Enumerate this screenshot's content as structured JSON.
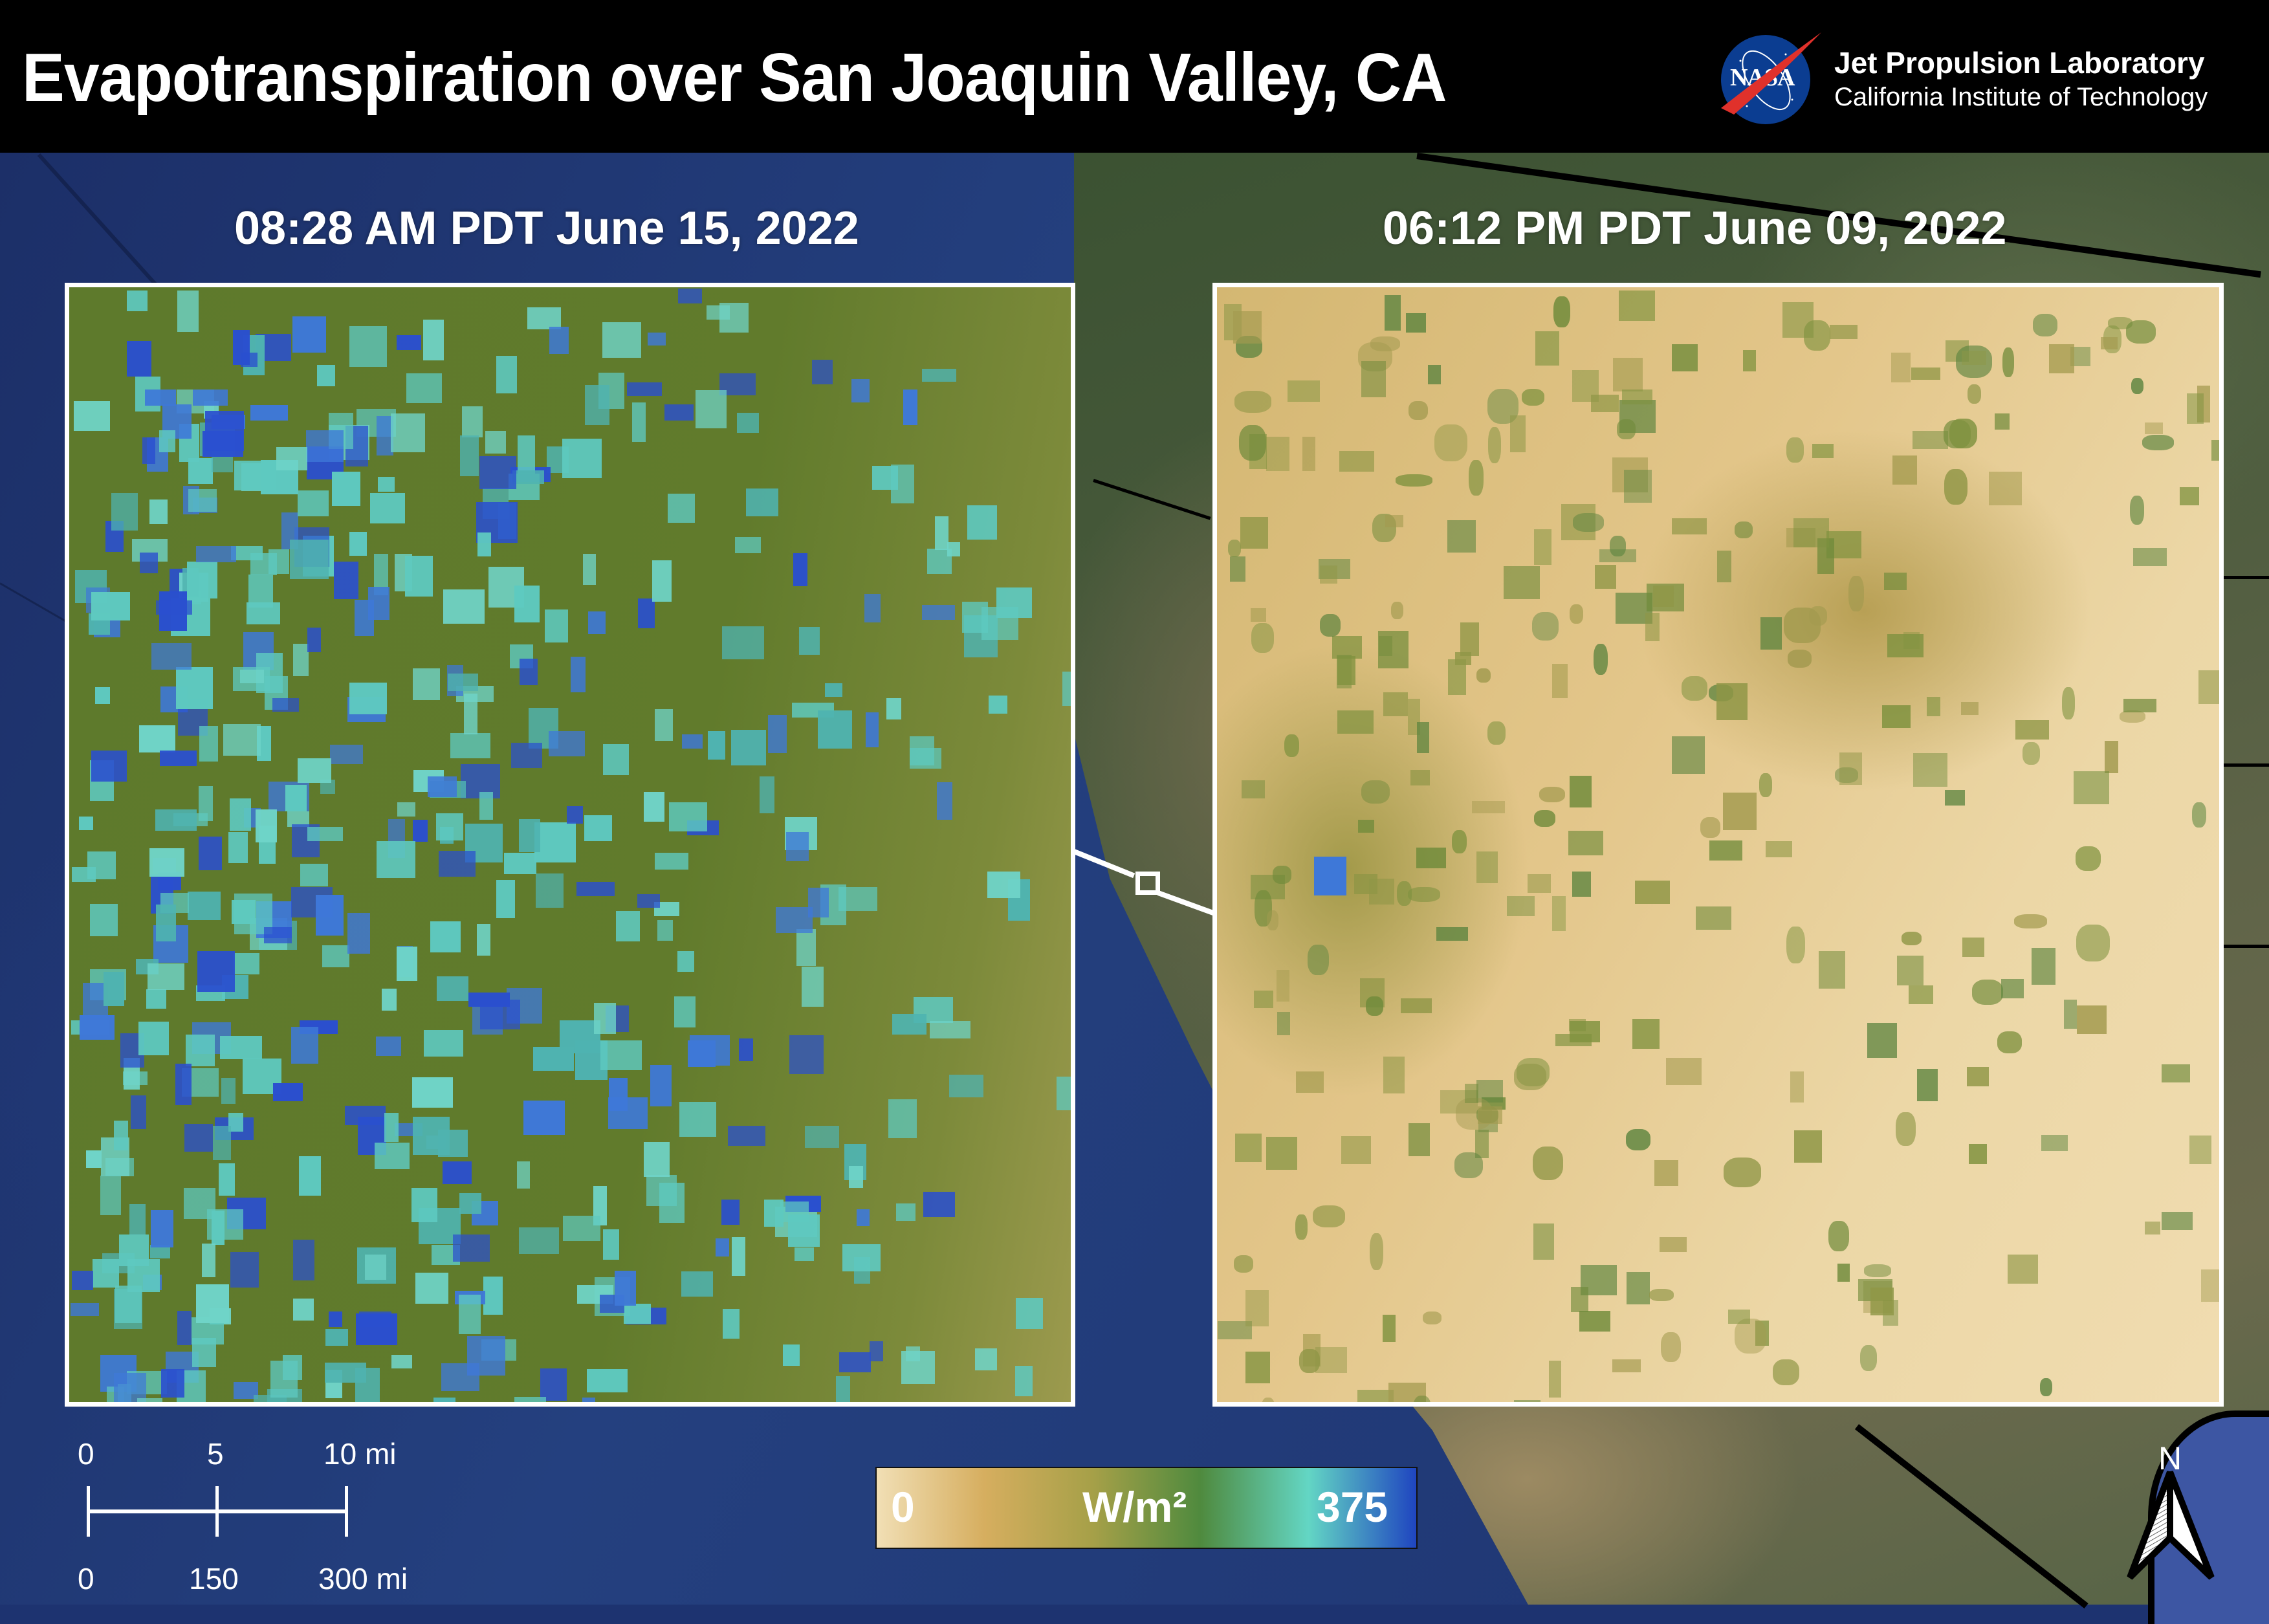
{
  "header": {
    "title": "Evapotranspiration over San Joaquin Valley,  CA",
    "logo": {
      "icon": "nasa-meatball-icon",
      "nasa_text": "NASA",
      "org_name": "Jet Propulsion Laboratory",
      "org_sub": "California Institute of Technology"
    }
  },
  "panels": [
    {
      "title": "08:28 AM PDT June 15,  2022"
    },
    {
      "title": "06:12 PM PDT June 09,  2022"
    }
  ],
  "scalebar": {
    "top_labels": [
      "0",
      "5",
      "10 mi"
    ],
    "bottom_labels": [
      "0",
      "150",
      "300 mi"
    ]
  },
  "colorbar": {
    "min_label": "0",
    "unit_label": "W/m²",
    "max_label": "375",
    "colors": [
      "#f1dfb5",
      "#d6ae5f",
      "#a6a048",
      "#4f8a3e",
      "#63d6c4",
      "#1f45c0"
    ]
  },
  "north_arrow": {
    "label": "N",
    "icon": "north-arrow-icon"
  },
  "colors": {
    "am_background": "#5f7a2a",
    "am_teal": "#5ec9c0",
    "am_blue": "#3e78d8",
    "am_dark_blue": "#2a4fcf",
    "pm_background": "#e6cc92",
    "pm_green": "#6f8a3a"
  }
}
